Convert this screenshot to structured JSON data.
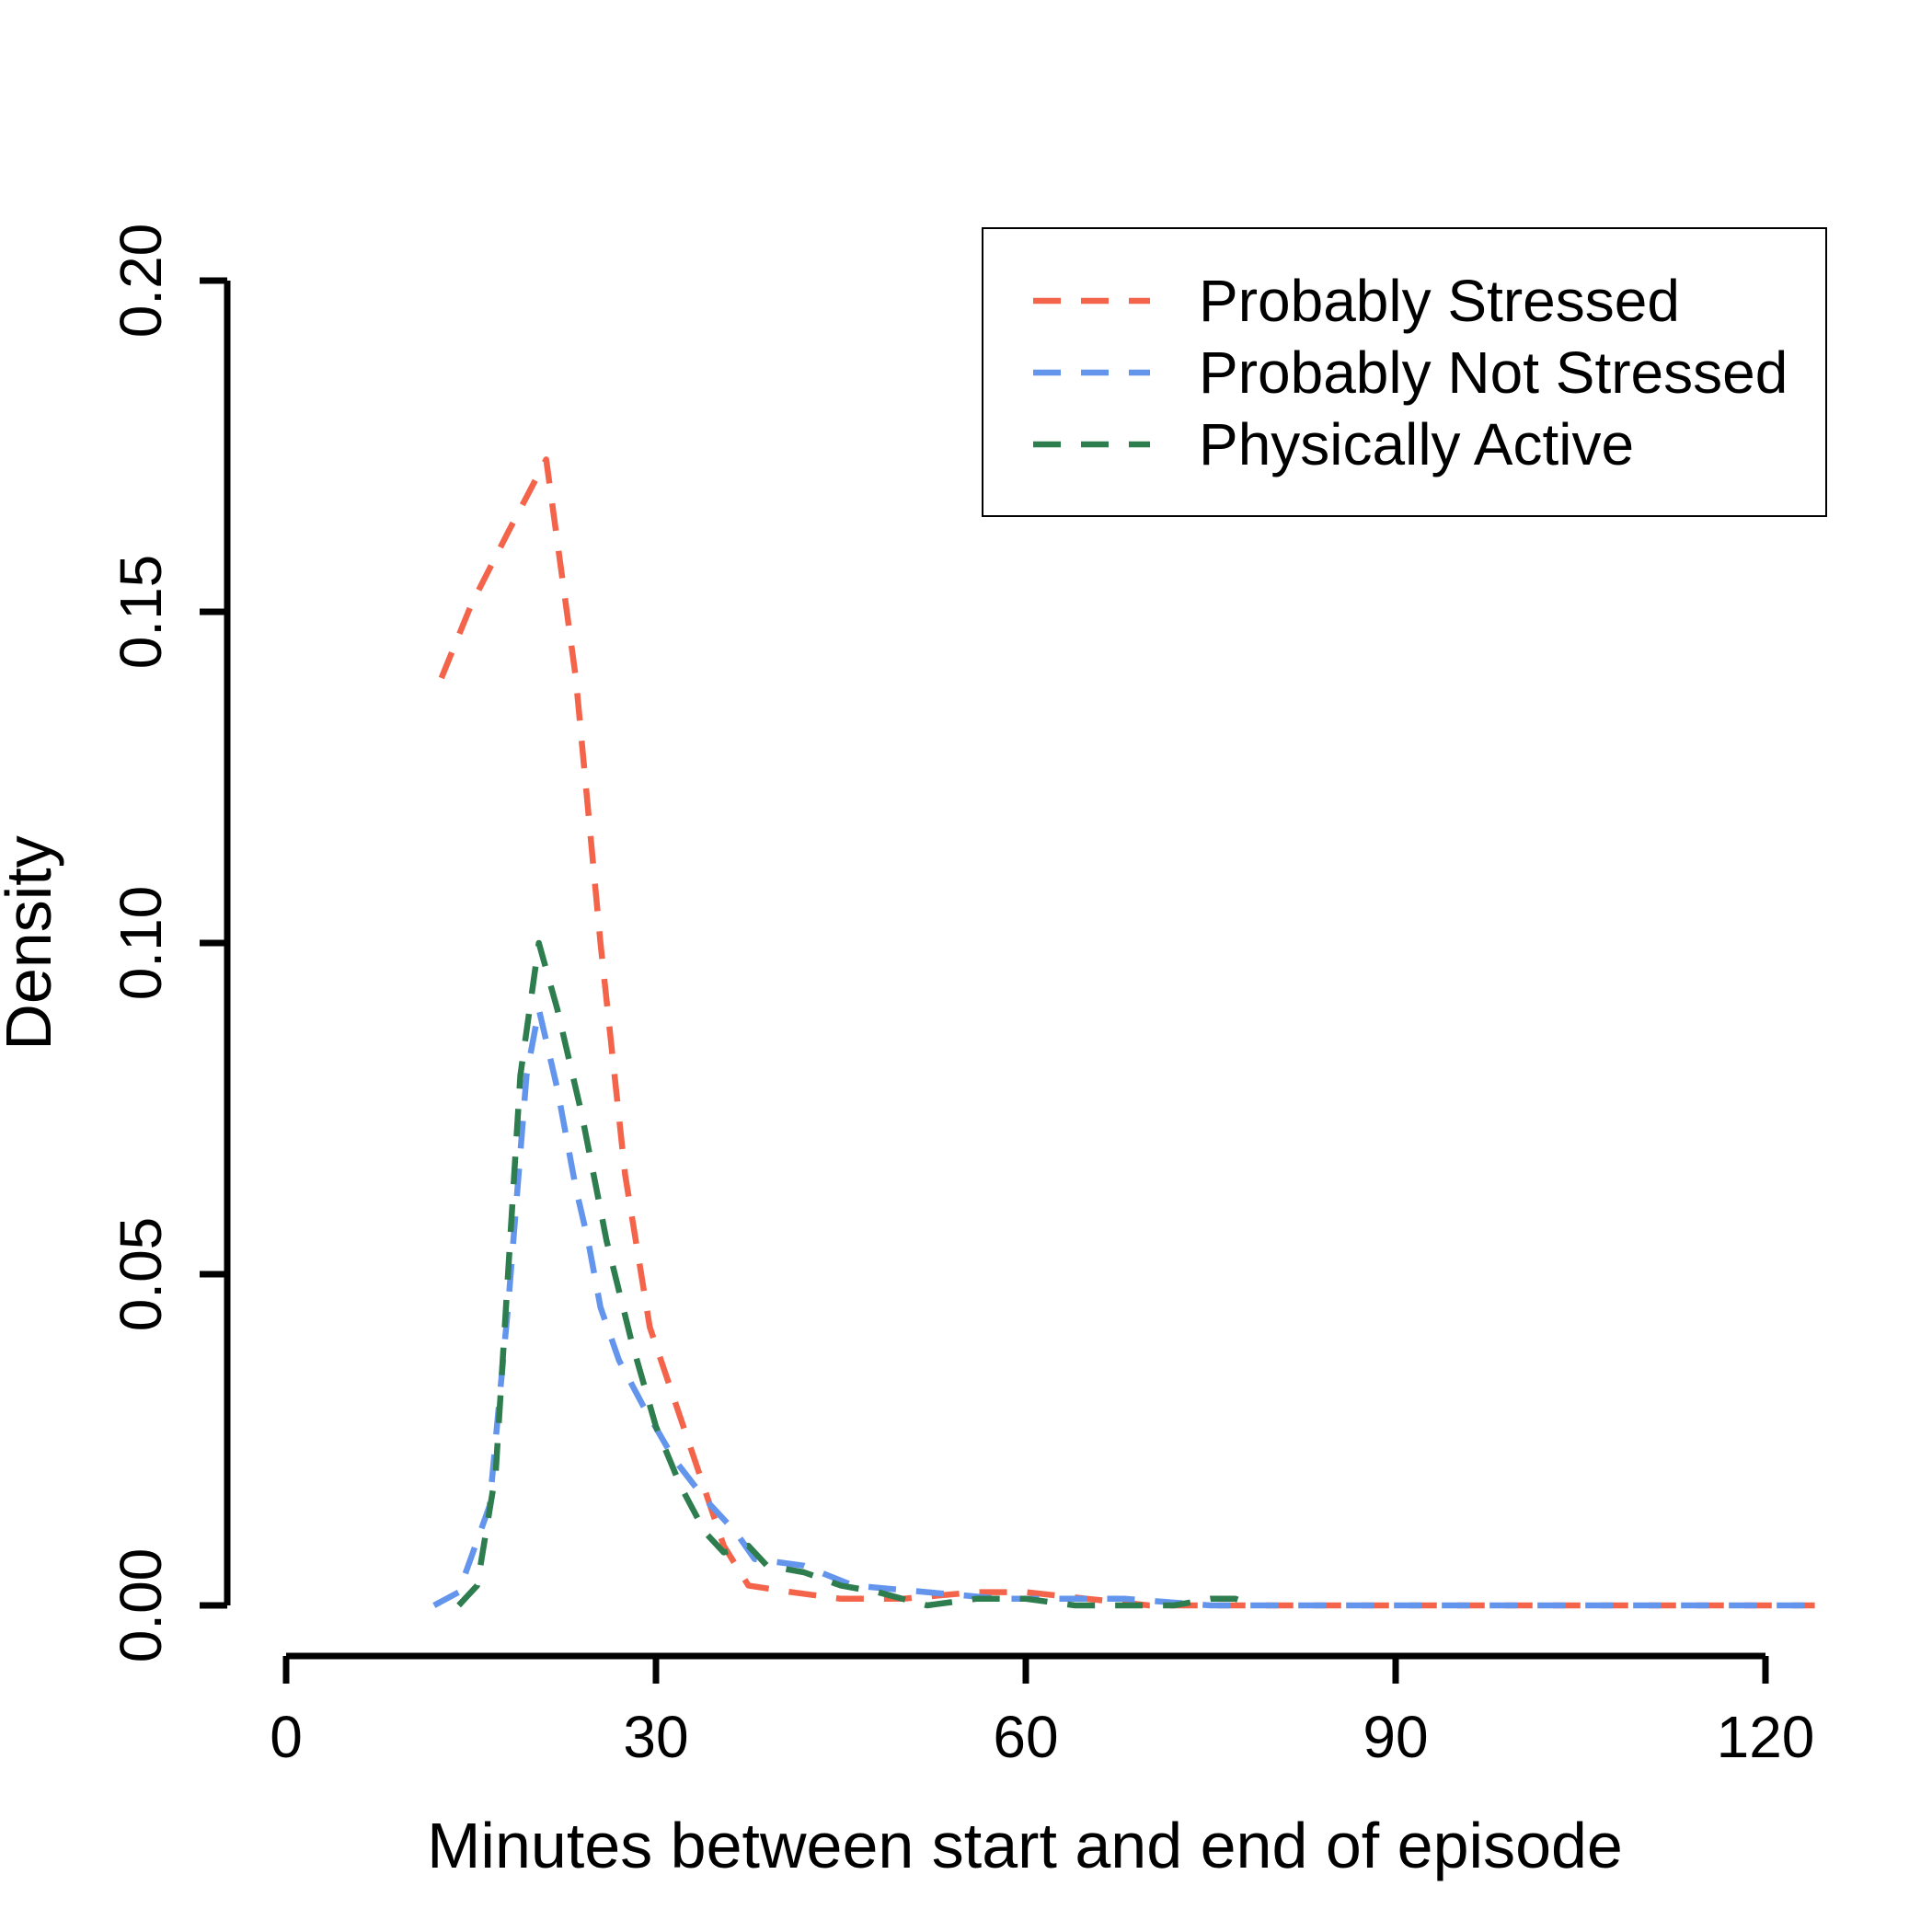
{
  "chart_data": {
    "type": "line",
    "title": "",
    "xlabel": "Minutes between start and end of episode",
    "ylabel": "Density",
    "xlim": [
      0,
      120
    ],
    "ylim": [
      0,
      0.2
    ],
    "x_ticks": [
      0,
      30,
      60,
      90,
      120
    ],
    "x_tick_labels": [
      "0",
      "30",
      "60",
      "90",
      "120"
    ],
    "y_ticks": [
      0,
      0.05,
      0.1,
      0.15,
      0.2
    ],
    "y_tick_labels": [
      "0.00",
      "0.05",
      "0.10",
      "0.15",
      "0.20"
    ],
    "grid": false,
    "legend_position": "top-right",
    "line_style": "dashed",
    "series": [
      {
        "name": "Probably Stressed",
        "color": "#F4644B",
        "points": [
          [
            12.6,
            0.14
          ],
          [
            15,
            0.151
          ],
          [
            18,
            0.162
          ],
          [
            21.1,
            0.173
          ],
          [
            23.5,
            0.14
          ],
          [
            25.5,
            0.1
          ],
          [
            27.5,
            0.065
          ],
          [
            29.5,
            0.042
          ],
          [
            31.5,
            0.031
          ],
          [
            33.5,
            0.02
          ],
          [
            35.5,
            0.009
          ],
          [
            37.5,
            0.003
          ],
          [
            41,
            0.002
          ],
          [
            45,
            0.001
          ],
          [
            50,
            0.001
          ],
          [
            56,
            0.002
          ],
          [
            60,
            0.002
          ],
          [
            65,
            0.001
          ],
          [
            70,
            0.0
          ],
          [
            75,
            0.0
          ],
          [
            80,
            0.0
          ],
          [
            90,
            0.0
          ],
          [
            100,
            0.0
          ],
          [
            110,
            0.0
          ],
          [
            120,
            0.0
          ],
          [
            124,
            0.0
          ]
        ]
      },
      {
        "name": "Probably Not Stressed",
        "color": "#6495ED",
        "points": [
          [
            12,
            0.0
          ],
          [
            14,
            0.002
          ],
          [
            16.5,
            0.015
          ],
          [
            18,
            0.045
          ],
          [
            19.5,
            0.08
          ],
          [
            20.5,
            0.09
          ],
          [
            22,
            0.078
          ],
          [
            23.5,
            0.063
          ],
          [
            24.5,
            0.055
          ],
          [
            25.5,
            0.045
          ],
          [
            27,
            0.037
          ],
          [
            29,
            0.03
          ],
          [
            31.5,
            0.022
          ],
          [
            34,
            0.016
          ],
          [
            36.5,
            0.011
          ],
          [
            38,
            0.007
          ],
          [
            42,
            0.006
          ],
          [
            46,
            0.003
          ],
          [
            52,
            0.002
          ],
          [
            58,
            0.001
          ],
          [
            62,
            0.001
          ],
          [
            68,
            0.001
          ],
          [
            75,
            0.0
          ],
          [
            85,
            0.0
          ],
          [
            95,
            0.0
          ],
          [
            105,
            0.0
          ],
          [
            115,
            0.0
          ],
          [
            124,
            0.0
          ]
        ]
      },
      {
        "name": "Physically Active",
        "color": "#2E7D4F",
        "points": [
          [
            14,
            0.0
          ],
          [
            15.5,
            0.003
          ],
          [
            17,
            0.02
          ],
          [
            18,
            0.05
          ],
          [
            19,
            0.08
          ],
          [
            20.5,
            0.1
          ],
          [
            22,
            0.09
          ],
          [
            24,
            0.074
          ],
          [
            26,
            0.055
          ],
          [
            28,
            0.04
          ],
          [
            30,
            0.027
          ],
          [
            32,
            0.018
          ],
          [
            34,
            0.011
          ],
          [
            35.5,
            0.008
          ],
          [
            37.5,
            0.009
          ],
          [
            39,
            0.006
          ],
          [
            42,
            0.005
          ],
          [
            45,
            0.003
          ],
          [
            48,
            0.002
          ],
          [
            52,
            0.0
          ],
          [
            56,
            0.001
          ],
          [
            60,
            0.001
          ],
          [
            64,
            0.0
          ],
          [
            68,
            0.0
          ],
          [
            72,
            0.0
          ],
          [
            75,
            0.001
          ],
          [
            77,
            0.001
          ],
          [
            78.5,
            0.0
          ]
        ]
      }
    ]
  }
}
